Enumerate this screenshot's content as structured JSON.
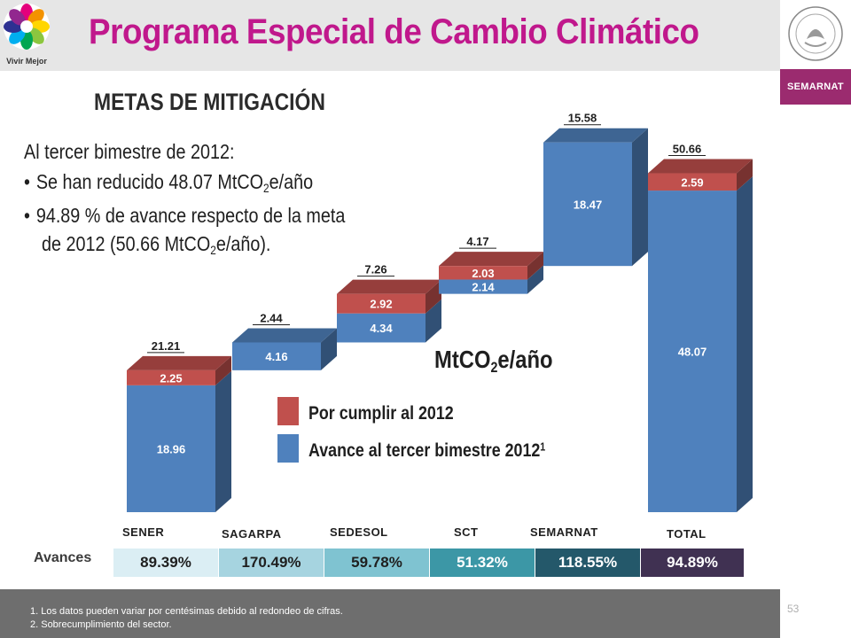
{
  "header": {
    "title": "Programa Especial de Cambio Climático",
    "logo_text": "Vivir Mejor",
    "agency_tag": "SEMARNAT"
  },
  "section_title": "METAS DE MITIGACIÓN",
  "intro": {
    "line1": "Al tercer bimestre de 2012:",
    "line2_a": "Se han reducido 48.07 MtCO",
    "line2_sub": "2",
    "line2_b": "e/año",
    "line3": "94.89 % de avance respecto de la meta",
    "line4_a": "de 2012 (50.66 MtCO",
    "line4_sub": "2",
    "line4_b": "e/año).",
    "bullet": "•"
  },
  "unit_label": {
    "text": "MtCO",
    "sub": "2",
    "rest": "e/año"
  },
  "legend": {
    "red_label": "Por cumplir al 2012",
    "blue_label": "Avance al tercer bimestre 2012",
    "blue_sup": "1"
  },
  "chart_data": {
    "type": "bar",
    "subtype": "3d stacked waterfall",
    "categories": [
      "SENER",
      "SAGARPA",
      "SEDESOL",
      "SCT",
      "SEMARNAT",
      "TOTAL"
    ],
    "series": [
      {
        "name": "Avance al tercer bimestre 2012",
        "color": "#4f81bd",
        "values": [
          18.96,
          4.16,
          4.34,
          2.14,
          18.47,
          48.07
        ]
      },
      {
        "name": "Por cumplir al 2012",
        "color": "#c0504d",
        "values": [
          2.25,
          null,
          2.92,
          2.03,
          null,
          2.59
        ]
      }
    ],
    "totals": [
      "21.21",
      "2.44",
      "7.26",
      "4.17",
      "15.58",
      "50.66"
    ],
    "waterfall_base": [
      0,
      21.21,
      25.37,
      32.63,
      36.8,
      0
    ],
    "ylim": [
      0,
      56
    ],
    "grid": false
  },
  "avances": {
    "label": "Avances",
    "values": [
      "89.39%",
      "170.49%",
      "59.78%",
      "51.32%",
      "118.55%",
      "94.89%"
    ],
    "colors": [
      "#dbeef4",
      "#a6d4e0",
      "#7fc3d1",
      "#3c97a6",
      "#24586a",
      "#403152"
    ],
    "text_colors": [
      "#1f1f1f",
      "#1f1f1f",
      "#1f1f1f",
      "#ffffff",
      "#ffffff",
      "#ffffff"
    ]
  },
  "footnotes": {
    "note1": "1. Los datos pueden variar por centésimas debido al redondeo de cifras.",
    "note2": "2. Sobrecumplimiento del sector."
  },
  "page_number": "53"
}
